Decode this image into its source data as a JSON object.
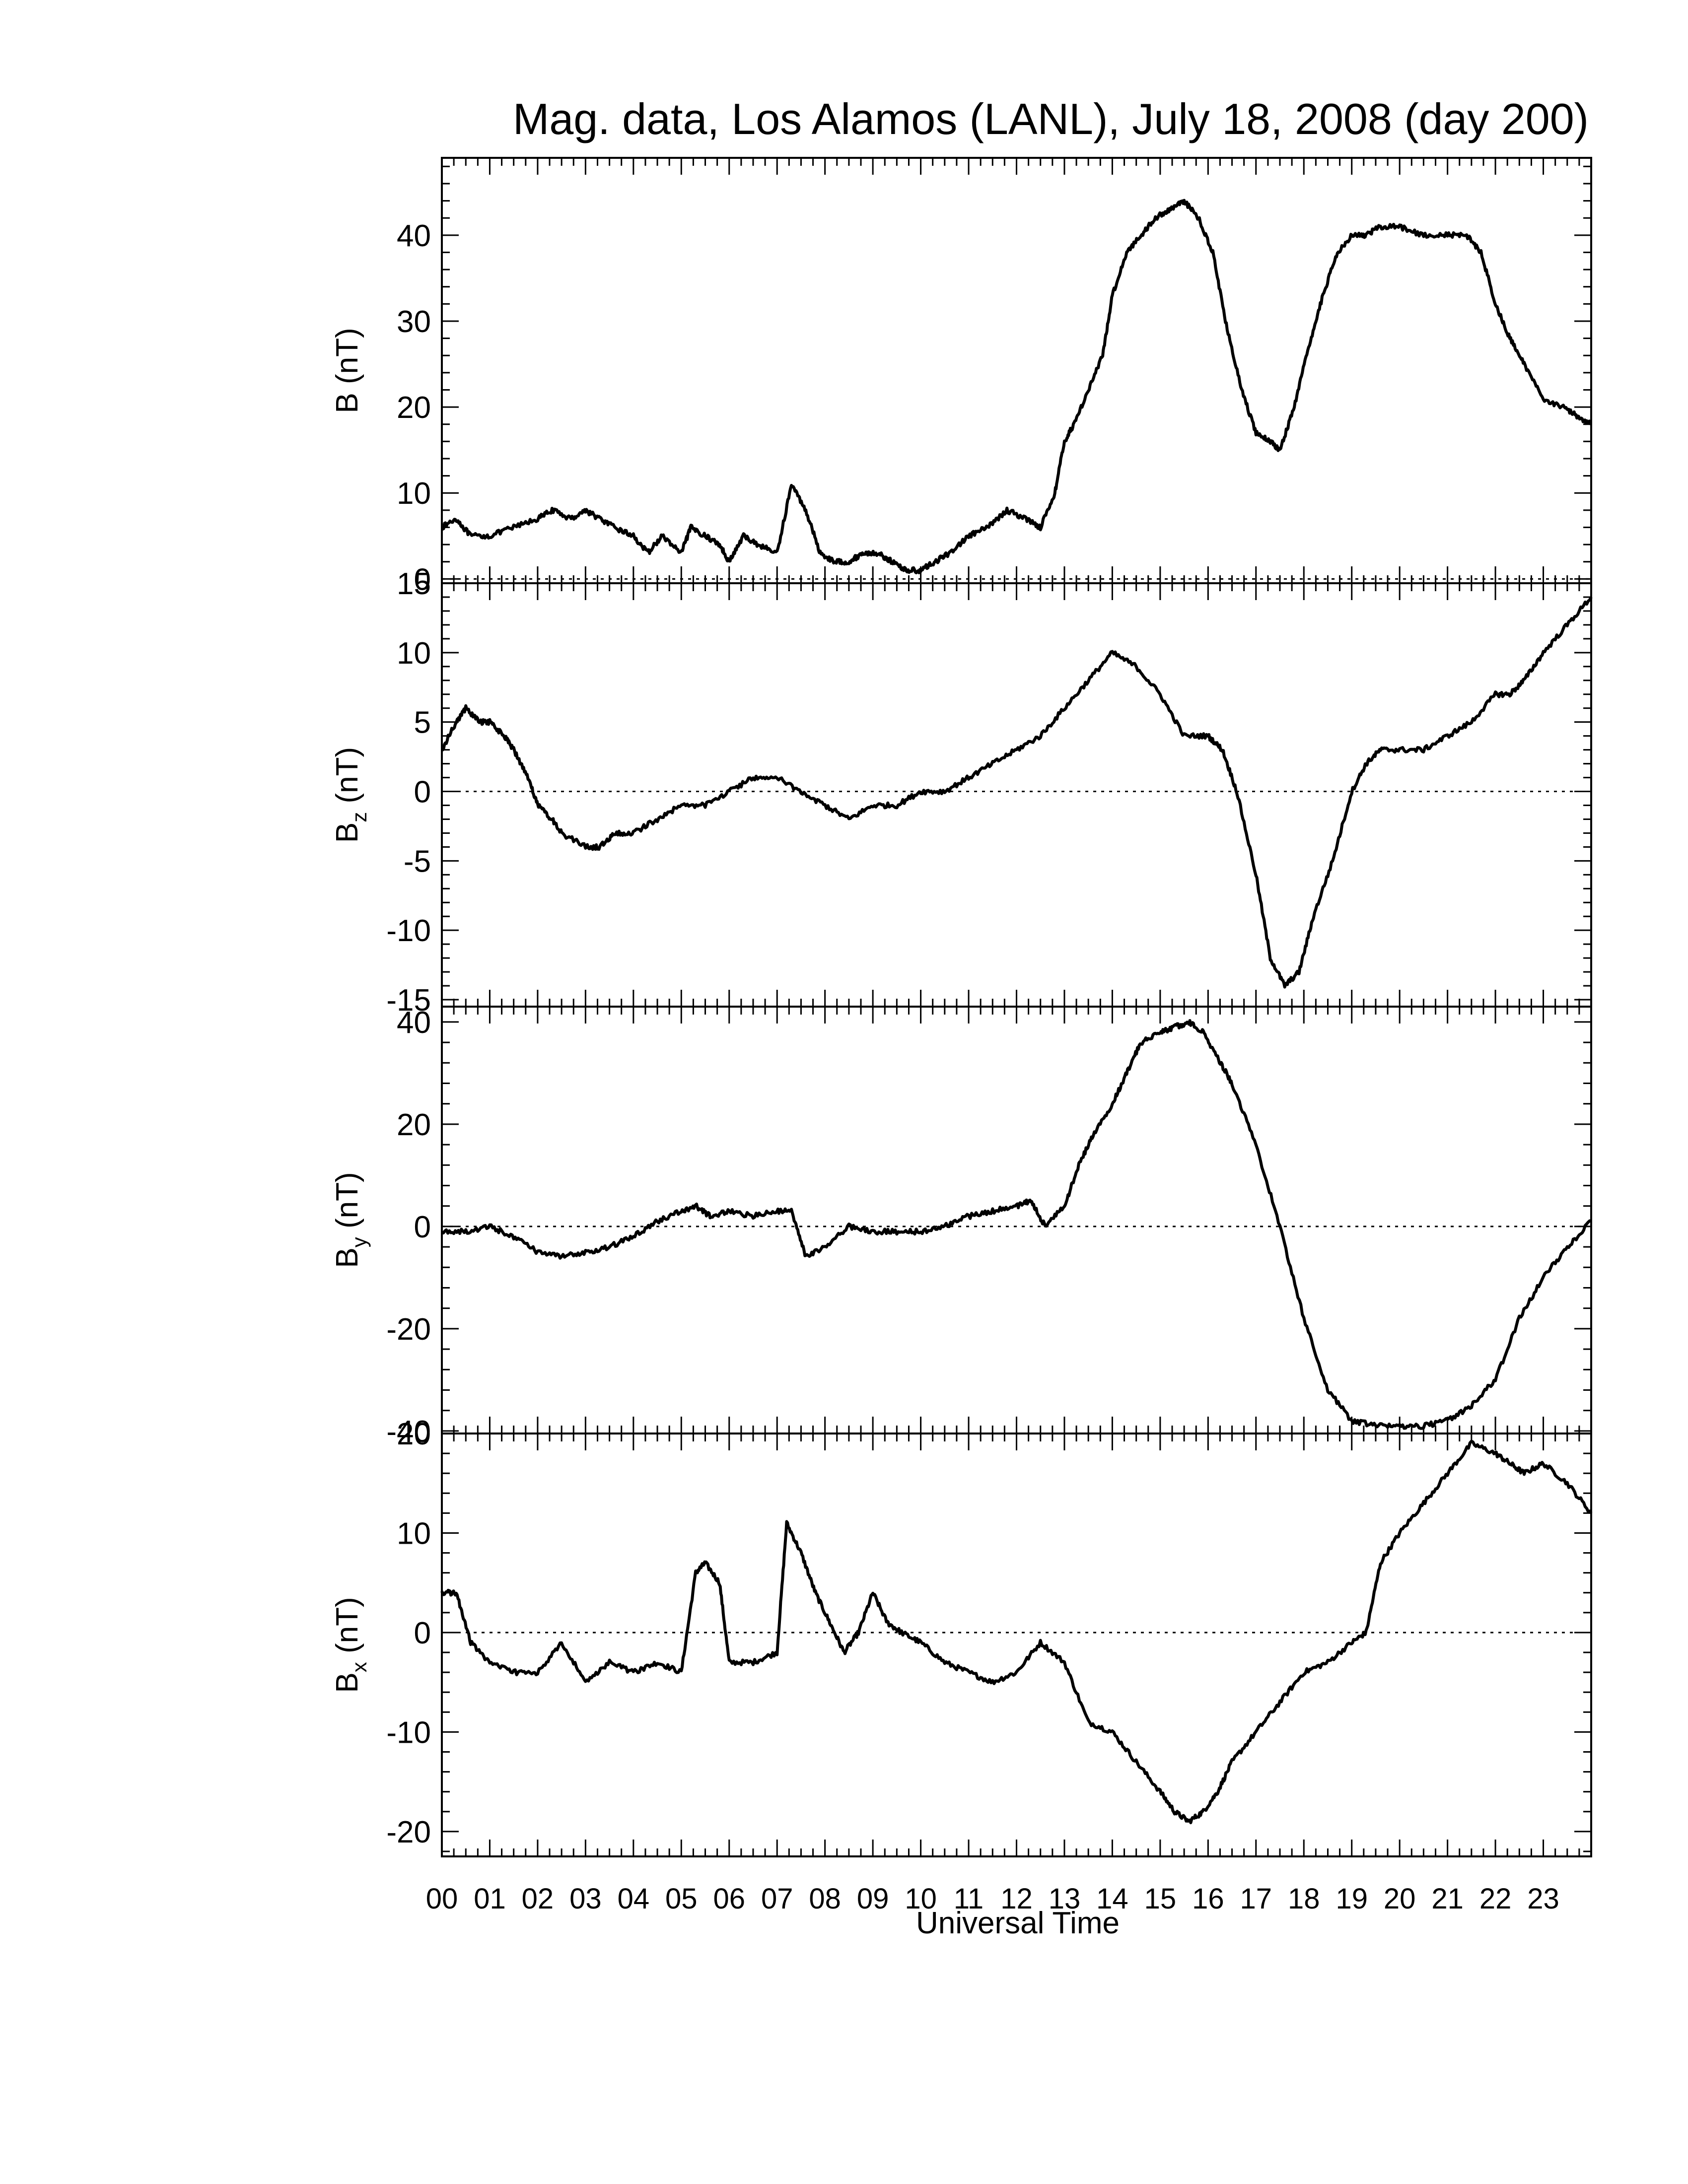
{
  "chart_data": {
    "type": "line",
    "title": "Mag. data, Los Alamos (LANL), July 18, 2008 (day 200)",
    "xlabel": "Universal Time",
    "xlim": [
      0,
      24
    ],
    "xticks": [
      "00",
      "01",
      "02",
      "03",
      "04",
      "05",
      "06",
      "07",
      "08",
      "09",
      "10",
      "11",
      "12",
      "13",
      "14",
      "15",
      "16",
      "17",
      "18",
      "19",
      "20",
      "21",
      "22",
      "23"
    ],
    "panels": [
      {
        "ylabel": "B (nT)",
        "ylabel_sub": "",
        "ylim": [
          -0.5,
          49
        ],
        "yticks": [
          0,
          10,
          20,
          30,
          40
        ],
        "zero_line": true,
        "x": [
          0,
          0.3,
          0.6,
          1,
          1.5,
          2,
          2.3,
          2.7,
          3,
          3.3,
          3.6,
          4,
          4.3,
          4.6,
          5,
          5.2,
          5.5,
          5.8,
          6,
          6.3,
          6.6,
          7,
          7.3,
          7.6,
          7.9,
          8.2,
          8.5,
          8.8,
          9.1,
          9.4,
          9.7,
          10,
          10.3,
          10.6,
          11,
          11.4,
          11.8,
          12.2,
          12.5,
          12.8,
          13,
          13.2,
          13.5,
          13.8,
          14,
          14.3,
          14.6,
          14.9,
          15.2,
          15.5,
          15.8,
          16.1,
          16.4,
          16.7,
          17,
          17.3,
          17.5,
          17.8,
          18.1,
          18.4,
          18.7,
          19,
          19.3,
          19.6,
          20,
          20.5,
          21,
          21.4,
          21.7,
          22,
          22.3,
          22.6,
          23,
          23.4,
          23.7,
          24
        ],
        "y": [
          6,
          7,
          5,
          5,
          6,
          7,
          8,
          7,
          8,
          7,
          6,
          5,
          3,
          5,
          3,
          6,
          5,
          4,
          2,
          5,
          4,
          3,
          11,
          8,
          3,
          2,
          2,
          3,
          3,
          2,
          1,
          1,
          2,
          3,
          5,
          6,
          8,
          7,
          6,
          10,
          16,
          18,
          22,
          26,
          33,
          38,
          40,
          42,
          43,
          44,
          42,
          38,
          29,
          22,
          17,
          16,
          15,
          20,
          27,
          33,
          38,
          40,
          40,
          41,
          41,
          40,
          40,
          40,
          38,
          32,
          28,
          25,
          21,
          20,
          19,
          18
        ]
      },
      {
        "ylabel": "B",
        "ylabel_sub": "z",
        "ylabel_unit": "(nT)",
        "ylim": [
          -15.5,
          15
        ],
        "yticks": [
          -15,
          -10,
          -5,
          0,
          5,
          10,
          15
        ],
        "zero_line": true,
        "x": [
          0,
          0.3,
          0.5,
          0.8,
          1,
          1.3,
          1.5,
          1.8,
          2,
          2.3,
          2.5,
          3,
          3.3,
          3.6,
          4,
          4.5,
          5,
          5.5,
          6,
          6.5,
          7,
          7.5,
          8,
          8.5,
          9,
          9.5,
          10,
          10.5,
          11,
          11.5,
          12,
          12.5,
          13,
          13.5,
          14,
          14.5,
          15,
          15.5,
          16,
          16.3,
          16.6,
          17,
          17.3,
          17.6,
          17.9,
          18.2,
          18.6,
          19,
          19.3,
          19.6,
          20,
          20.5,
          21,
          21.5,
          22,
          22.3,
          22.6,
          23,
          23.5,
          24
        ],
        "y": [
          3,
          5,
          6,
          5,
          5,
          4,
          3,
          1,
          -1,
          -2,
          -3,
          -4,
          -4,
          -3,
          -3,
          -2,
          -1,
          -1,
          0,
          1,
          1,
          0,
          -1,
          -2,
          -1,
          -1,
          0,
          0,
          1,
          2,
          3,
          4,
          6,
          8,
          10,
          9,
          7,
          4,
          4,
          3,
          0,
          -6,
          -12,
          -14,
          -13,
          -9,
          -5,
          0,
          2,
          3,
          3,
          3,
          4,
          5,
          7,
          7,
          8,
          10,
          12,
          14
        ]
      },
      {
        "ylabel": "B",
        "ylabel_sub": "y",
        "ylabel_unit": "(nT)",
        "ylim": [
          -40.5,
          43
        ],
        "yticks": [
          -40,
          -20,
          0,
          20,
          40
        ],
        "zero_line": true,
        "x": [
          0,
          0.5,
          1,
          1.5,
          2,
          2.5,
          3,
          3.5,
          4,
          4.5,
          5,
          5.3,
          5.6,
          6,
          6.5,
          7,
          7.3,
          7.6,
          8,
          8.5,
          9,
          9.5,
          10,
          10.5,
          11,
          11.5,
          12,
          12.3,
          12.6,
          13,
          13.3,
          13.6,
          14,
          14.3,
          14.6,
          15,
          15.3,
          15.6,
          15.9,
          16.2,
          16.5,
          17,
          17.5,
          18,
          18.5,
          19,
          19.5,
          20,
          20.5,
          21,
          21.5,
          22,
          22.5,
          23,
          23.5,
          24
        ],
        "y": [
          -1,
          -1,
          0,
          -2,
          -5,
          -6,
          -5,
          -4,
          -2,
          1,
          3,
          4,
          2,
          3,
          2,
          3,
          3,
          -6,
          -4,
          0,
          -1,
          -1,
          -1,
          0,
          2,
          3,
          4,
          5,
          0,
          4,
          12,
          18,
          24,
          30,
          36,
          38,
          39,
          40,
          38,
          33,
          28,
          16,
          0,
          -18,
          -32,
          -38,
          -39,
          -39,
          -39,
          -38,
          -35,
          -30,
          -18,
          -10,
          -4,
          1
        ]
      },
      {
        "ylabel": "B",
        "ylabel_sub": "x",
        "ylabel_unit": "(nT)",
        "ylim": [
          -22.5,
          20
        ],
        "yticks": [
          -20,
          -10,
          0,
          10,
          20
        ],
        "zero_line": true,
        "x": [
          0,
          0.3,
          0.6,
          1,
          1.5,
          2,
          2.5,
          3,
          3.5,
          4,
          4.5,
          5,
          5.3,
          5.5,
          5.8,
          6,
          6.5,
          7,
          7.2,
          7.5,
          7.8,
          8.1,
          8.4,
          8.7,
          9,
          9.3,
          9.6,
          10,
          10.5,
          11,
          11.5,
          12,
          12.5,
          13,
          13.5,
          14,
          14.5,
          15,
          15.3,
          15.6,
          15.9,
          16.2,
          16.5,
          17,
          17.5,
          18,
          18.5,
          19,
          19.3,
          19.6,
          20,
          20.5,
          21,
          21.5,
          22,
          22.3,
          22.6,
          23,
          23.5,
          24
        ],
        "y": [
          4,
          4,
          -1,
          -3,
          -4,
          -4,
          -1,
          -5,
          -3,
          -4,
          -3,
          -4,
          6,
          7,
          5,
          -3,
          -3,
          -2,
          11,
          8,
          4,
          1,
          -2,
          0,
          4,
          1,
          0,
          -1,
          -3,
          -4,
          -5,
          -4,
          -1,
          -3,
          -9,
          -10,
          -13,
          -16,
          -18,
          -19,
          -18,
          -16,
          -13,
          -10,
          -7,
          -4,
          -3,
          -1,
          0,
          7,
          10,
          13,
          16,
          19,
          18,
          17,
          16,
          17,
          15,
          12
        ]
      }
    ]
  }
}
